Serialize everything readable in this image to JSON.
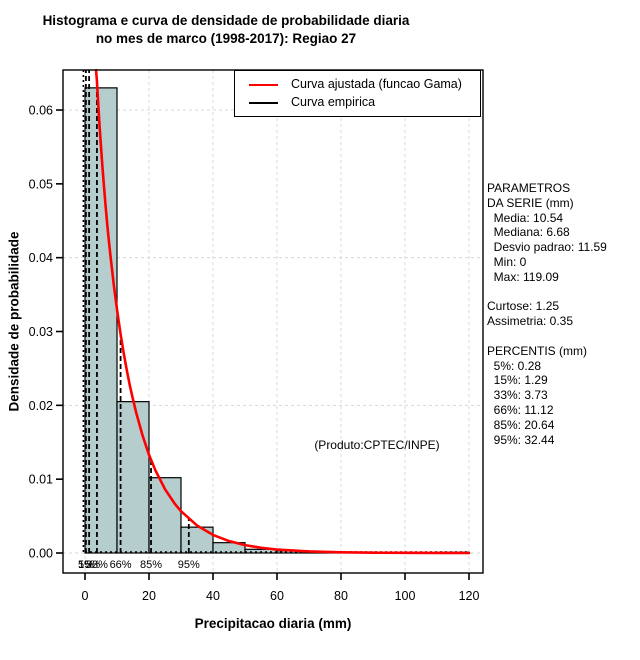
{
  "title": {
    "line1": "Histograma e curva de densidade de probabilidade diaria",
    "line2": "no mes de marco (1998-2017): Regiao 27"
  },
  "legend": {
    "items": [
      {
        "label": "Curva ajustada (funcao Gama)",
        "color": "#ff0000"
      },
      {
        "label": "Curva empirica",
        "color": "#000000"
      }
    ]
  },
  "side_panel": {
    "lines": [
      "PARAMETROS",
      "DA SERIE (mm)",
      "  Media: 10.54",
      "  Mediana: 6.68",
      "  Desvio padrao: 11.59",
      "  Min: 0",
      "  Max: 119.09",
      "",
      "Curtose: 1.25",
      "Assimetria: 0.35",
      "",
      "PERCENTIS (mm)",
      "  5%: 0.28",
      "  15%: 1.29",
      "  33%: 3.73",
      "  66%: 11.12",
      "  85%: 20.64",
      "  95%: 32.44"
    ]
  },
  "product_note": "(Produto:CPTEC/INPE)",
  "chart_data": {
    "type": "bar",
    "subtype": "histogram-with-density-curves",
    "title": "Histograma e curva de densidade de probabilidade diaria no mes de marco (1998-2017): Regiao 27",
    "xlabel": "Precipitacao diaria (mm)",
    "ylabel": "Densidade de probabilidade",
    "xlim": [
      0,
      120
    ],
    "ylim": [
      0,
      0.0654
    ],
    "grid": {
      "on": true,
      "y_lines": [
        0,
        0.02,
        0.04,
        0.06
      ],
      "color": "#d8d8d8"
    },
    "x_tick_values": [
      0,
      20,
      40,
      60,
      80,
      100,
      120
    ],
    "x_tick_labels": [
      "0",
      "20",
      "40",
      "60",
      "80",
      "100",
      "120"
    ],
    "y_tick_values": [
      0,
      0.01,
      0.02,
      0.03,
      0.04,
      0.05,
      0.06
    ],
    "y_tick_labels": [
      "0.00",
      "0.01",
      "0.02",
      "0.03",
      "0.04",
      "0.05",
      "0.06"
    ],
    "histogram": {
      "bin_start": 0,
      "bin_width": 10,
      "densities": [
        0.063,
        0.0205,
        0.0102,
        0.0035,
        0.0014,
        0.0005,
        0.0003,
        0.0001,
        0,
        0,
        0,
        0.0001
      ],
      "fill": "#b5cdcd",
      "stroke": "#000000"
    },
    "gamma_curve": {
      "name": "Curva ajustada (funcao Gama)",
      "color": "#ff0000",
      "points": [
        [
          3.45,
          0.0654
        ],
        [
          3.7,
          0.0641
        ],
        [
          4,
          0.0618
        ],
        [
          4.5,
          0.0582
        ],
        [
          5,
          0.055
        ],
        [
          5.5,
          0.052
        ],
        [
          6,
          0.0493
        ],
        [
          6.5,
          0.0467
        ],
        [
          7,
          0.0443
        ],
        [
          7.5,
          0.0421
        ],
        [
          8,
          0.0401
        ],
        [
          9,
          0.0363
        ],
        [
          10,
          0.033
        ],
        [
          11,
          0.03
        ],
        [
          12,
          0.0273
        ],
        [
          13,
          0.0249
        ],
        [
          14,
          0.0227
        ],
        [
          15,
          0.0208
        ],
        [
          16,
          0.019
        ],
        [
          18,
          0.0159
        ],
        [
          20,
          0.0133
        ],
        [
          22,
          0.0112
        ],
        [
          25,
          0.00864
        ],
        [
          28,
          0.0067
        ],
        [
          30,
          0.00566
        ],
        [
          35,
          0.00373
        ],
        [
          40,
          0.00245
        ],
        [
          45,
          0.00162
        ],
        [
          50,
          0.00107
        ],
        [
          55,
          0.00071
        ],
        [
          60,
          0.00047
        ],
        [
          70,
          0.00021
        ],
        [
          80,
          9e-05
        ],
        [
          90,
          4e-05
        ],
        [
          100,
          2e-05
        ],
        [
          110,
          1e-05
        ],
        [
          120,
          0
        ]
      ]
    },
    "empirical_curve": {
      "name": "Curva empirica",
      "color": "#000000",
      "spike_x": -0.5,
      "tail_from_x": 0,
      "tail_to_x": 120
    },
    "percentiles": {
      "labels": [
        "5%",
        "15%",
        "33%",
        "66%",
        "85%",
        "95%"
      ],
      "values": [
        0.28,
        1.29,
        3.73,
        11.12,
        20.64,
        32.44
      ],
      "line_top_density": [
        0.0654,
        0.0654,
        0.0639,
        0.0296,
        0.0128,
        0.0046
      ]
    }
  }
}
